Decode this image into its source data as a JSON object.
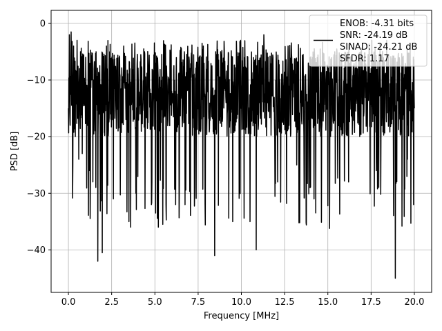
{
  "chart_data": {
    "type": "line",
    "xlabel": "Frequency [MHz]",
    "ylabel": "PSD [dB]",
    "xlim": [
      -1.0,
      21.0
    ],
    "ylim": [
      -47.5,
      2.3
    ],
    "xticks": [
      "0.0",
      "2.5",
      "5.0",
      "7.5",
      "10.0",
      "12.5",
      "15.0",
      "17.5",
      "20.0"
    ],
    "yticks": [
      "0",
      "−10",
      "−20",
      "−30",
      "−40"
    ],
    "xtick_values": [
      0,
      2.5,
      5,
      7.5,
      10,
      12.5,
      15,
      17.5,
      20
    ],
    "ytick_values": [
      0,
      -10,
      -20,
      -30,
      -40
    ],
    "grid": true,
    "legend": {
      "placement": "top-right",
      "entries": [
        "ENOB: -4.31 bits",
        "SNR: -24.19 dB",
        "SINAD: -24.21 dB",
        "SFDR: 1.17"
      ]
    },
    "series": [
      {
        "color": "#000000",
        "x_start": 0.0,
        "x_end": 20.0,
        "y_range": [
          -45,
          -1.5
        ],
        "typical_band": [
          -20,
          -5
        ],
        "points": [
          [
            0.0,
            -15
          ],
          [
            0.05,
            -2
          ],
          [
            0.1,
            -18
          ],
          [
            0.15,
            -1.5
          ],
          [
            0.2,
            -12
          ],
          [
            0.25,
            -25
          ],
          [
            0.3,
            -4
          ],
          [
            0.4,
            -20
          ],
          [
            0.5,
            -3
          ],
          [
            0.6,
            -24
          ],
          [
            0.7,
            -5
          ],
          [
            0.8,
            -23
          ],
          [
            1.0,
            -6
          ],
          [
            1.2,
            -26
          ],
          [
            1.6,
            -5
          ],
          [
            1.7,
            -42
          ],
          [
            1.8,
            -10
          ],
          [
            1.95,
            -40.5
          ],
          [
            2.2,
            -4
          ],
          [
            2.6,
            -31
          ],
          [
            3.2,
            -4
          ],
          [
            3.5,
            -35
          ],
          [
            3.6,
            -36
          ],
          [
            3.9,
            -30
          ],
          [
            4.4,
            -5
          ],
          [
            4.8,
            -32
          ],
          [
            5.2,
            -36
          ],
          [
            5.6,
            -5
          ],
          [
            6.2,
            -32
          ],
          [
            6.7,
            -5
          ],
          [
            7.3,
            -29
          ],
          [
            7.8,
            -4
          ],
          [
            8.45,
            -41
          ],
          [
            8.8,
            -5
          ],
          [
            9.5,
            -35
          ],
          [
            9.95,
            -3
          ],
          [
            10.5,
            -35
          ],
          [
            10.85,
            -40
          ],
          [
            11.3,
            -2
          ],
          [
            12.1,
            -28
          ],
          [
            12.7,
            -4
          ],
          [
            13.2,
            -25
          ],
          [
            14.2,
            -31
          ],
          [
            15.1,
            -36.2
          ],
          [
            15.4,
            -5
          ],
          [
            16.2,
            -28
          ],
          [
            17.0,
            -6
          ],
          [
            17.8,
            -26
          ],
          [
            18.4,
            -3
          ],
          [
            18.9,
            -45
          ],
          [
            19.3,
            -6
          ],
          [
            19.6,
            -24
          ],
          [
            19.95,
            -32
          ],
          [
            20.0,
            -15
          ]
        ]
      }
    ]
  }
}
